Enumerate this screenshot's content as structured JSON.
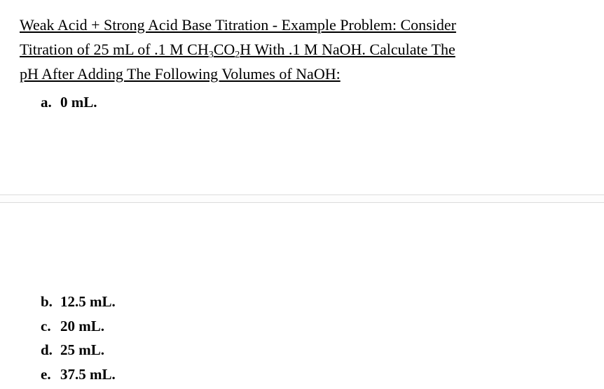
{
  "title": {
    "line1": "Weak Acid + Strong Acid Base Titration - Example Problem: Consider",
    "line2_pre": "Titration of 25 mL of .1 M CH",
    "sub1": "3",
    "line2_mid": "CO",
    "sub2": "2",
    "line2_post": "H With .1 M NaOH. Calculate The",
    "line3": "pH After Adding The Following Volumes of NaOH:"
  },
  "items": {
    "a": {
      "marker": "a.",
      "text": "0 mL."
    },
    "b": {
      "marker": "b.",
      "text": "12.5 mL."
    },
    "c": {
      "marker": "c.",
      "text": "20 mL."
    },
    "d": {
      "marker": "d.",
      "text": "25 mL."
    },
    "e": {
      "marker": "e.",
      "text": "37.5 mL."
    }
  },
  "colors": {
    "text": "#000000",
    "background": "#ffffff",
    "divider_border": "#dcdcdc"
  },
  "typography": {
    "title_fontsize": 22,
    "item_fontsize": 21,
    "sub_fontsize": 14
  }
}
